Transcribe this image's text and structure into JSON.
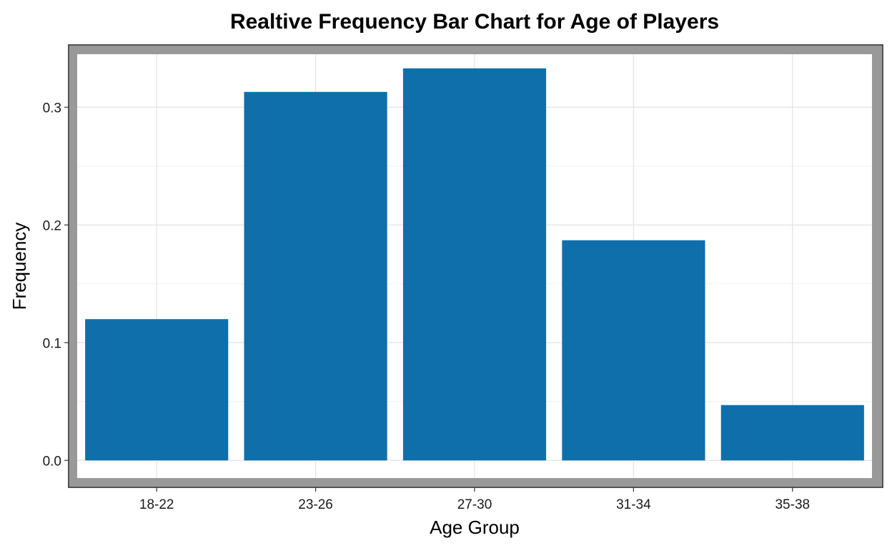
{
  "chart_data": {
    "type": "bar",
    "title": "Realtive Frequency Bar Chart for Age of Players",
    "xlabel": "Age Group",
    "ylabel": "Frequency",
    "categories": [
      "18-22",
      "23-26",
      "27-30",
      "31-34",
      "35-38"
    ],
    "values": [
      0.12,
      0.313,
      0.333,
      0.187,
      0.047
    ],
    "ylim": [
      -0.015,
      0.345
    ],
    "yticks": [
      0.0,
      0.1,
      0.2,
      0.3
    ],
    "ytick_labels": [
      "0.0",
      "0.1",
      "0.2",
      "0.3"
    ],
    "grid": true,
    "colors": {
      "bar": "#0e6fab",
      "frame": "#999999",
      "border": "#1a1a1a"
    }
  }
}
